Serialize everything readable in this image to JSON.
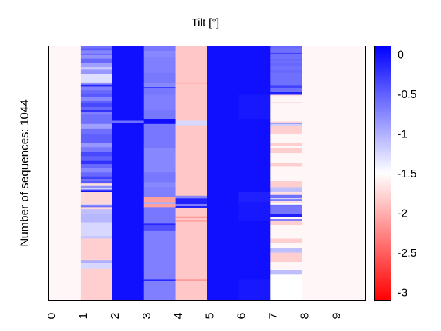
{
  "chart_data": {
    "type": "heatmap",
    "title": "Tilt [°]",
    "ylabel": "Number of sequences: 1044",
    "xlabel": "",
    "n_rows": 1044,
    "x_tick_labels": [
      "0",
      "1",
      "2",
      "3",
      "4",
      "5",
      "6",
      "7",
      "8",
      "9"
    ],
    "colorbar": {
      "range": [
        -3.1,
        0.1
      ],
      "tick_values": [
        0,
        -0.5,
        -1,
        -1.5,
        -2,
        -2.5,
        -3
      ],
      "tick_labels": [
        "0",
        "-0.5",
        "-1",
        "-1.5",
        "-2",
        "-2.5",
        "-3"
      ],
      "colormap": "bwr",
      "colors": {
        "high": "#0000ff",
        "mid": "#ffffff",
        "low": "#ff0000"
      }
    },
    "columns": [
      {
        "index": 0,
        "segments": [
          [
            0,
            1044,
            -1.55
          ]
        ]
      },
      {
        "index": 1,
        "segments": [
          [
            0,
            10,
            -0.6
          ],
          [
            10,
            18,
            -0.45
          ],
          [
            18,
            22,
            -0.8
          ],
          [
            22,
            26,
            -0.5
          ],
          [
            26,
            30,
            -0.8
          ],
          [
            30,
            36,
            -0.5
          ],
          [
            36,
            50,
            -0.8
          ],
          [
            50,
            70,
            -0.55
          ],
          [
            70,
            85,
            -0.9
          ],
          [
            85,
            95,
            -1.15
          ],
          [
            95,
            115,
            -0.85
          ],
          [
            115,
            150,
            -1.3
          ],
          [
            150,
            158,
            -0.8
          ],
          [
            158,
            166,
            -0.15
          ],
          [
            166,
            182,
            -0.7
          ],
          [
            182,
            195,
            -0.55
          ],
          [
            195,
            210,
            -0.45
          ],
          [
            210,
            225,
            -0.75
          ],
          [
            225,
            235,
            -0.5
          ],
          [
            235,
            250,
            -0.35
          ],
          [
            250,
            262,
            -0.55
          ],
          [
            262,
            272,
            -0.2
          ],
          [
            272,
            282,
            -0.7
          ],
          [
            282,
            320,
            -0.6
          ],
          [
            320,
            340,
            -0.9
          ],
          [
            340,
            360,
            -0.6
          ],
          [
            360,
            400,
            -0.5
          ],
          [
            400,
            415,
            -0.85
          ],
          [
            415,
            435,
            -0.65
          ],
          [
            435,
            452,
            -0.35
          ],
          [
            452,
            470,
            -0.5
          ],
          [
            470,
            485,
            -0.2
          ],
          [
            485,
            500,
            -0.55
          ],
          [
            500,
            520,
            -0.75
          ],
          [
            520,
            535,
            -0.55
          ],
          [
            535,
            545,
            -0.3
          ],
          [
            545,
            555,
            -0.6
          ],
          [
            555,
            565,
            -0.45
          ],
          [
            565,
            575,
            -1.7
          ],
          [
            575,
            582,
            -0.8
          ],
          [
            582,
            588,
            -1.2
          ],
          [
            588,
            594,
            -0.7
          ],
          [
            594,
            600,
            -0.05
          ],
          [
            600,
            650,
            -1.75
          ],
          [
            650,
            656,
            -1.2
          ],
          [
            656,
            662,
            -0.6
          ],
          [
            662,
            670,
            -1.75
          ],
          [
            670,
            690,
            -1.1
          ],
          [
            690,
            725,
            -1.05
          ],
          [
            725,
            780,
            -1.25
          ],
          [
            780,
            790,
            -1.15
          ],
          [
            790,
            880,
            -1.8
          ],
          [
            880,
            892,
            -1.0
          ],
          [
            892,
            916,
            -1.25
          ],
          [
            916,
            1044,
            -1.8
          ]
        ]
      },
      {
        "index": 2,
        "segments": [
          [
            0,
            305,
            0
          ],
          [
            305,
            315,
            -0.6
          ],
          [
            315,
            1044,
            0
          ]
        ]
      },
      {
        "index": 3,
        "segments": [
          [
            0,
            20,
            -0.65
          ],
          [
            20,
            45,
            -0.75
          ],
          [
            45,
            110,
            -0.7
          ],
          [
            110,
            150,
            -0.65
          ],
          [
            150,
            168,
            -0.75
          ],
          [
            168,
            172,
            -0.15
          ],
          [
            172,
            200,
            -0.65
          ],
          [
            200,
            230,
            -0.7
          ],
          [
            230,
            260,
            -0.7
          ],
          [
            260,
            300,
            -0.65
          ],
          [
            300,
            320,
            0.0
          ],
          [
            320,
            420,
            -0.65
          ],
          [
            420,
            520,
            -0.75
          ],
          [
            520,
            560,
            -0.65
          ],
          [
            560,
            580,
            -0.75
          ],
          [
            580,
            620,
            -0.7
          ],
          [
            620,
            642,
            -2.1
          ],
          [
            642,
            650,
            -1.0
          ],
          [
            650,
            662,
            -2.1
          ],
          [
            662,
            730,
            -0.65
          ],
          [
            730,
            738,
            -0.15
          ],
          [
            738,
            760,
            -0.4
          ],
          [
            760,
            960,
            -0.7
          ],
          [
            960,
            966,
            -0.15
          ],
          [
            966,
            1044,
            -0.7
          ]
        ]
      },
      {
        "index": 4,
        "segments": [
          [
            0,
            150,
            -1.85
          ],
          [
            150,
            154,
            -2.2
          ],
          [
            154,
            305,
            -1.85
          ],
          [
            305,
            325,
            -1.25
          ],
          [
            325,
            615,
            -1.85
          ],
          [
            615,
            625,
            -0.75
          ],
          [
            625,
            650,
            -0.1
          ],
          [
            650,
            658,
            -0.75
          ],
          [
            658,
            665,
            -0.1
          ],
          [
            665,
            700,
            -1.85
          ],
          [
            700,
            706,
            -2.2
          ],
          [
            706,
            716,
            -1.85
          ],
          [
            716,
            722,
            -2.2
          ],
          [
            722,
            960,
            -1.85
          ],
          [
            960,
            964,
            -2.2
          ],
          [
            964,
            1044,
            -1.85
          ]
        ]
      },
      {
        "index": 5,
        "segments": [
          [
            0,
            1044,
            0
          ]
        ]
      },
      {
        "index": 6,
        "segments": [
          [
            0,
            200,
            0
          ],
          [
            200,
            300,
            -0.05
          ],
          [
            300,
            600,
            0
          ],
          [
            600,
            640,
            -0.1
          ],
          [
            640,
            720,
            -0.05
          ],
          [
            720,
            960,
            0
          ],
          [
            960,
            1044,
            -0.05
          ]
        ]
      },
      {
        "index": 7,
        "segments": [
          [
            0,
            8,
            -0.55
          ],
          [
            8,
            28,
            -0.6
          ],
          [
            28,
            34,
            -0.3
          ],
          [
            34,
            50,
            -0.6
          ],
          [
            50,
            60,
            -0.55
          ],
          [
            60,
            70,
            -0.6
          ],
          [
            70,
            80,
            -0.55
          ],
          [
            80,
            100,
            -0.6
          ],
          [
            100,
            110,
            -0.55
          ],
          [
            110,
            160,
            -0.6
          ],
          [
            160,
            170,
            -0.3
          ],
          [
            170,
            190,
            -0.6
          ],
          [
            190,
            196,
            -0.1
          ],
          [
            196,
            200,
            -0.2
          ],
          [
            200,
            205,
            -1.7
          ],
          [
            205,
            230,
            -1.55
          ],
          [
            230,
            235,
            -1.7
          ],
          [
            235,
            310,
            -1.55
          ],
          [
            310,
            316,
            -1.75
          ],
          [
            316,
            320,
            -0.8
          ],
          [
            320,
            326,
            -1.2
          ],
          [
            326,
            360,
            -1.8
          ],
          [
            360,
            400,
            -1.55
          ],
          [
            400,
            410,
            -1.8
          ],
          [
            410,
            418,
            -1.55
          ],
          [
            418,
            440,
            -1.8
          ],
          [
            440,
            480,
            -1.55
          ],
          [
            480,
            495,
            -1.8
          ],
          [
            495,
            555,
            -1.55
          ],
          [
            555,
            580,
            -1.8
          ],
          [
            580,
            600,
            -1.1
          ],
          [
            600,
            612,
            -1.7
          ],
          [
            612,
            625,
            -0.6
          ],
          [
            625,
            630,
            -1.55
          ],
          [
            630,
            638,
            -0.7
          ],
          [
            638,
            645,
            -1.7
          ],
          [
            645,
            652,
            -1.5
          ],
          [
            652,
            660,
            -0.6
          ],
          [
            660,
            692,
            -0.65
          ],
          [
            692,
            702,
            -0.1
          ],
          [
            702,
            710,
            -1.55
          ],
          [
            710,
            718,
            -0.7
          ],
          [
            718,
            735,
            -1.8
          ],
          [
            735,
            790,
            -1.55
          ],
          [
            790,
            810,
            -1.8
          ],
          [
            810,
            830,
            -1.55
          ],
          [
            830,
            850,
            -1.1
          ],
          [
            850,
            888,
            -1.8
          ],
          [
            888,
            920,
            -1.55
          ],
          [
            920,
            940,
            -1.1
          ],
          [
            940,
            1044,
            -1.5
          ]
        ]
      },
      {
        "index": 8,
        "segments": [
          [
            0,
            1044,
            -1.55
          ]
        ]
      },
      {
        "index": 9,
        "segments": [
          [
            0,
            1044,
            -1.55
          ]
        ]
      }
    ]
  }
}
